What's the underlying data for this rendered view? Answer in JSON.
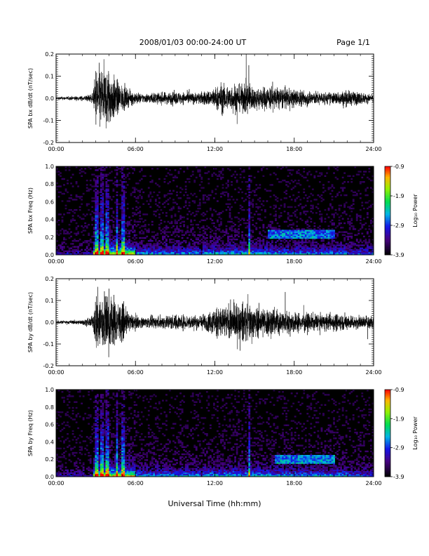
{
  "header": {
    "title": "2008/01/03  00:00-24:00 UT",
    "page": "Page 1/1"
  },
  "xlabel": "Universal Time (hh:mm)",
  "chart_data": [
    {
      "type": "line",
      "ylabel": "SPA bx dB/dt (nT/sec)",
      "xlim": [
        0,
        24
      ],
      "ylim": [
        -0.2,
        0.2
      ],
      "x_ticks": [
        "00:00",
        "06:00",
        "12:00",
        "18:00",
        "24:00"
      ],
      "y_ticks": [
        "-0.2",
        "-0.1",
        "0.0",
        "0.1",
        "0.2"
      ],
      "y_tick_values": [
        -0.2,
        -0.1,
        0.0,
        0.1,
        0.2
      ],
      "amplitude_envelope": {
        "hours": [
          0,
          1,
          2,
          2.8,
          3.0,
          3.5,
          4.0,
          4.3,
          4.8,
          5.5,
          6.5,
          7.5,
          8.5,
          9.5,
          10.5,
          11.5,
          12.0,
          12.5,
          13.0,
          13.5,
          14.0,
          14.5,
          15.0,
          16.0,
          17.0,
          18.0,
          19.0,
          20.0,
          21.0,
          22.0,
          23.0,
          24.0
        ],
        "amplitude": [
          0.01,
          0.012,
          0.015,
          0.03,
          0.2,
          0.2,
          0.2,
          0.15,
          0.1,
          0.05,
          0.03,
          0.035,
          0.04,
          0.04,
          0.035,
          0.05,
          0.07,
          0.1,
          0.08,
          0.1,
          0.08,
          0.12,
          0.07,
          0.08,
          0.07,
          0.06,
          0.05,
          0.04,
          0.04,
          0.05,
          0.04,
          0.02
        ]
      }
    },
    {
      "type": "heatmap",
      "ylabel": "SPA bx Freq (Hz)",
      "xlim": [
        0,
        24
      ],
      "ylim": [
        0,
        1
      ],
      "x_ticks": [
        "00:00",
        "06:00",
        "12:00",
        "18:00",
        "24:00"
      ],
      "y_ticks": [
        "0.0",
        "0.2",
        "0.4",
        "0.6",
        "0.8",
        "1.0"
      ],
      "y_tick_values": [
        0.0,
        0.2,
        0.4,
        0.6,
        0.8,
        1.0
      ],
      "colorbar": {
        "label": "Log₁₀ Power",
        "range": [
          -3.9,
          -0.9
        ],
        "ticks": [
          "-0.9",
          "-1.9",
          "-2.9",
          "-3.9"
        ],
        "tick_values": [
          -0.9,
          -1.9,
          -2.9,
          -3.9
        ]
      },
      "vertical_bursts_hours": [
        3.1,
        3.5,
        3.9,
        4.6,
        5.1,
        14.6
      ],
      "band_features": [
        {
          "hours": [
            16,
            21
          ],
          "freq_hz": [
            0.18,
            0.28
          ]
        }
      ]
    },
    {
      "type": "line",
      "ylabel": "SPA by dB/dt (nT/sec)",
      "xlim": [
        0,
        24
      ],
      "ylim": [
        -0.2,
        0.2
      ],
      "x_ticks": [
        "00:00",
        "06:00",
        "12:00",
        "18:00",
        "24:00"
      ],
      "y_ticks": [
        "-0.2",
        "-0.1",
        "0.0",
        "0.1",
        "0.2"
      ],
      "y_tick_values": [
        -0.2,
        -0.1,
        0.0,
        0.1,
        0.2
      ],
      "amplitude_envelope": {
        "hours": [
          0,
          1,
          2,
          2.8,
          3.0,
          3.5,
          4.0,
          4.5,
          5.0,
          5.5,
          6.5,
          7.5,
          8.5,
          9.5,
          10.5,
          11.5,
          12.0,
          12.5,
          13.0,
          13.5,
          14.0,
          14.5,
          15.0,
          16.0,
          17.0,
          18.0,
          19.0,
          20.0,
          21.0,
          22.0,
          23.0,
          24.0
        ],
        "amplitude": [
          0.01,
          0.012,
          0.015,
          0.04,
          0.2,
          0.2,
          0.2,
          0.15,
          0.12,
          0.06,
          0.035,
          0.04,
          0.05,
          0.05,
          0.045,
          0.06,
          0.1,
          0.12,
          0.1,
          0.12,
          0.12,
          0.14,
          0.1,
          0.1,
          0.08,
          0.07,
          0.06,
          0.05,
          0.06,
          0.05,
          0.04,
          0.05
        ]
      }
    },
    {
      "type": "heatmap",
      "ylabel": "SPA by Freq (Hz)",
      "xlim": [
        0,
        24
      ],
      "ylim": [
        0,
        1
      ],
      "x_ticks": [
        "00:00",
        "06:00",
        "12:00",
        "18:00",
        "24:00"
      ],
      "y_ticks": [
        "0.0",
        "0.2",
        "0.4",
        "0.6",
        "0.8",
        "1.0"
      ],
      "y_tick_values": [
        0.0,
        0.2,
        0.4,
        0.6,
        0.8,
        1.0
      ],
      "colorbar": {
        "label": "Log₁₀ Power",
        "range": [
          -3.9,
          -0.9
        ],
        "ticks": [
          "-0.9",
          "-1.9",
          "-2.9",
          "-3.9"
        ],
        "tick_values": [
          -0.9,
          -1.9,
          -2.9,
          -3.9
        ]
      },
      "vertical_bursts_hours": [
        3.1,
        3.5,
        3.9,
        4.6,
        5.1,
        14.6
      ],
      "band_features": [
        {
          "hours": [
            16.5,
            21
          ],
          "freq_hz": [
            0.15,
            0.25
          ]
        }
      ]
    }
  ]
}
